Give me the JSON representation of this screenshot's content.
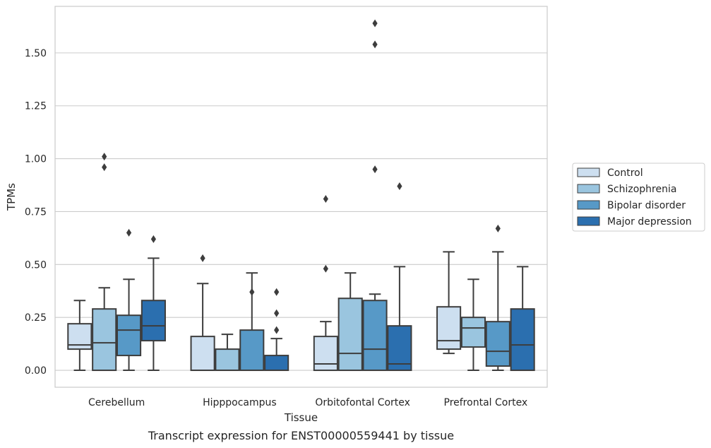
{
  "chart_data": {
    "type": "boxplot",
    "title": "Transcript expression for ENST00000559441 by tissue",
    "xlabel": "Tissue",
    "ylabel": "TPMs",
    "ylim": [
      -0.08,
      1.72
    ],
    "yticks": [
      0.0,
      0.25,
      0.5,
      0.75,
      1.0,
      1.25,
      1.5
    ],
    "ytick_labels": [
      "0.00",
      "0.25",
      "0.50",
      "0.75",
      "1.00",
      "1.25",
      "1.50"
    ],
    "categories": [
      "Cerebellum",
      "Hipppocampus",
      "Orbitofontal Cortex",
      "Prefrontal Cortex"
    ],
    "grid": true,
    "legend_position": "right",
    "series": [
      {
        "name": "Control",
        "color": "#cddff0",
        "boxes": [
          {
            "whislo": 0.0,
            "q1": 0.1,
            "med": 0.12,
            "q3": 0.22,
            "whishi": 0.33,
            "fliers": []
          },
          {
            "whislo": 0.0,
            "q1": 0.0,
            "med": 0.0,
            "q3": 0.16,
            "whishi": 0.41,
            "fliers": [
              0.53
            ]
          },
          {
            "whislo": 0.0,
            "q1": 0.0,
            "med": 0.03,
            "q3": 0.16,
            "whishi": 0.23,
            "fliers": [
              0.48,
              0.81
            ]
          },
          {
            "whislo": 0.08,
            "q1": 0.1,
            "med": 0.14,
            "q3": 0.3,
            "whishi": 0.56,
            "fliers": []
          }
        ]
      },
      {
        "name": "Schizophrenia",
        "color": "#9ac5df",
        "boxes": [
          {
            "whislo": 0.0,
            "q1": 0.0,
            "med": 0.13,
            "q3": 0.29,
            "whishi": 0.39,
            "fliers": [
              0.96,
              1.01
            ]
          },
          {
            "whislo": 0.0,
            "q1": 0.0,
            "med": 0.0,
            "q3": 0.1,
            "whishi": 0.17,
            "fliers": []
          },
          {
            "whislo": 0.0,
            "q1": 0.0,
            "med": 0.08,
            "q3": 0.34,
            "whishi": 0.46,
            "fliers": []
          },
          {
            "whislo": 0.0,
            "q1": 0.11,
            "med": 0.2,
            "q3": 0.25,
            "whishi": 0.43,
            "fliers": []
          }
        ]
      },
      {
        "name": "Bipolar disorder",
        "color": "#5799c7",
        "boxes": [
          {
            "whislo": 0.0,
            "q1": 0.07,
            "med": 0.19,
            "q3": 0.26,
            "whishi": 0.43,
            "fliers": [
              0.65
            ]
          },
          {
            "whislo": 0.0,
            "q1": 0.0,
            "med": 0.0,
            "q3": 0.19,
            "whishi": 0.46,
            "fliers": [
              0.37
            ]
          },
          {
            "whislo": 0.0,
            "q1": 0.0,
            "med": 0.1,
            "q3": 0.33,
            "whishi": 0.36,
            "fliers": [
              0.95,
              1.54,
              1.64
            ]
          },
          {
            "whislo": 0.0,
            "q1": 0.02,
            "med": 0.09,
            "q3": 0.23,
            "whishi": 0.56,
            "fliers": [
              0.67
            ]
          }
        ]
      },
      {
        "name": "Major depression",
        "color": "#2b6faf",
        "boxes": [
          {
            "whislo": 0.0,
            "q1": 0.14,
            "med": 0.21,
            "q3": 0.33,
            "whishi": 0.53,
            "fliers": [
              0.62
            ]
          },
          {
            "whislo": 0.0,
            "q1": 0.0,
            "med": 0.0,
            "q3": 0.07,
            "whishi": 0.15,
            "fliers": [
              0.19,
              0.27,
              0.37
            ]
          },
          {
            "whislo": 0.0,
            "q1": 0.0,
            "med": 0.03,
            "q3": 0.21,
            "whishi": 0.49,
            "fliers": [
              0.87
            ]
          },
          {
            "whislo": 0.0,
            "q1": 0.0,
            "med": 0.12,
            "q3": 0.29,
            "whishi": 0.49,
            "fliers": []
          }
        ]
      }
    ]
  }
}
